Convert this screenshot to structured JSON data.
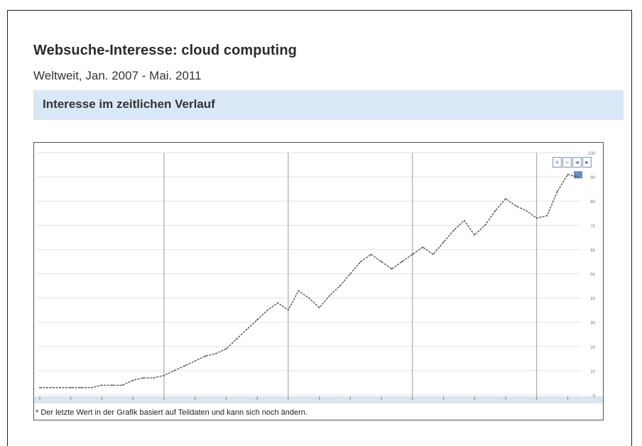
{
  "header": {
    "title": "Websuche-Interesse: cloud computing",
    "subtitle": "Weltweit, Jan. 2007 - Mai. 2011"
  },
  "section": {
    "title": "Interesse im zeitlichen Verlauf"
  },
  "footnote": "* Der letzte Wert in der Grafik basiert auf Teildaten und kann sich noch ändern.",
  "chart_data": {
    "type": "line",
    "title": "",
    "xlabel": "",
    "ylabel": "",
    "x_start": "2007-01",
    "x_end": "2011-05",
    "ylim": [
      0,
      100
    ],
    "yticks": [
      0,
      10,
      20,
      30,
      40,
      50,
      60,
      70,
      80,
      90,
      100
    ],
    "grid": true,
    "series": [
      {
        "values": [
          3,
          3,
          3,
          3,
          3,
          3,
          4,
          4,
          4,
          6,
          7,
          7,
          8,
          10,
          12,
          14,
          16,
          17,
          19,
          23,
          27,
          31,
          35,
          38,
          35,
          43,
          40,
          36,
          41,
          45,
          50,
          55,
          58,
          55,
          52,
          55,
          58,
          61,
          58,
          63,
          68,
          72,
          66,
          70,
          76,
          81,
          78,
          76,
          73,
          74,
          84,
          91,
          90
        ]
      }
    ],
    "colors": {
      "line": "#4a4a4a",
      "grid": "#e2e2e2",
      "year_marker": "#9a9a9a",
      "axis_band": "#dbe4ef",
      "highlight": "#4f79b4"
    }
  }
}
